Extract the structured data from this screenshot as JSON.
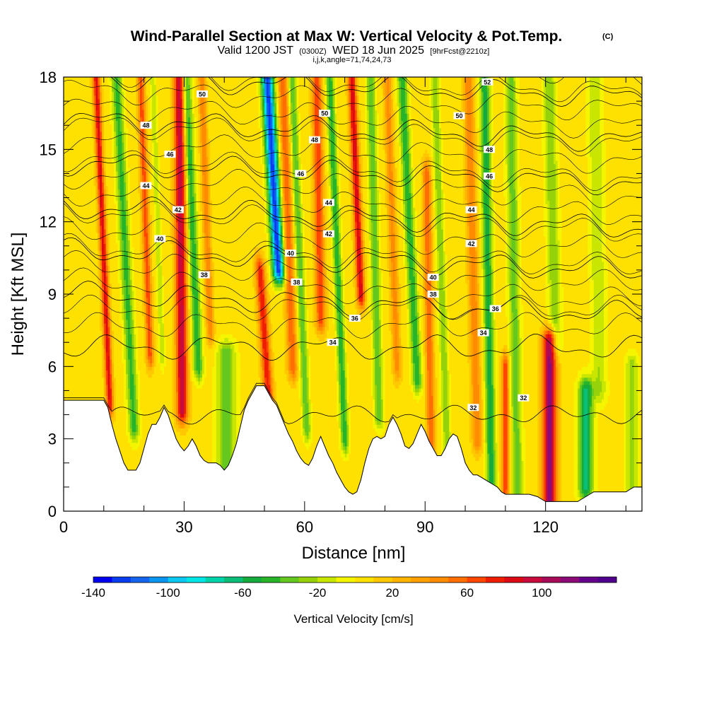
{
  "chart_data": {
    "type": "heatmap",
    "title": "Wind-Parallel Section at Max W: Vertical Velocity & Pot.Temp.",
    "title_mark": "(C)",
    "subtitle_valid": "Valid 1200 JST",
    "subtitle_utc": "(0300Z)",
    "subtitle_date": "WED 18 Jun 2025",
    "subtitle_fcst": "[9hrFcst@2210z]",
    "subtitle2": "i,j,k,angle=71,74,24,73",
    "xlabel": "Distance [nm]",
    "ylabel": "Height [Kft MSL]",
    "xlim": [
      0,
      144
    ],
    "ylim": [
      0,
      18
    ],
    "x_ticks": [
      "0",
      "30",
      "60",
      "90",
      "120"
    ],
    "x_tick_values": [
      0,
      30,
      60,
      90,
      120
    ],
    "y_ticks": [
      "0",
      "3",
      "6",
      "9",
      "12",
      "15",
      "18"
    ],
    "y_tick_values": [
      0,
      3,
      6,
      9,
      12,
      15,
      18
    ],
    "colorbar": {
      "label": "Vertical Velocity [cm/s]",
      "min": -140,
      "max": 140,
      "step": 10,
      "tick_labels": [
        "-140",
        "-100",
        "-60",
        "-20",
        "20",
        "60",
        "100"
      ],
      "tick_values": [
        -140,
        -100,
        -60,
        -20,
        20,
        60,
        100
      ],
      "colors": [
        "#0000f0",
        "#0a3cf0",
        "#1464f0",
        "#0a96f0",
        "#0ac8f0",
        "#00e6e6",
        "#00d2aa",
        "#0abe78",
        "#14aa3c",
        "#28b428",
        "#64c81e",
        "#96d20a",
        "#c8e600",
        "#f5f500",
        "#ffe100",
        "#ffc800",
        "#ffb400",
        "#ffa000",
        "#ff8c00",
        "#ff6e00",
        "#ff4600",
        "#f01e00",
        "#dc0a14",
        "#c80a3c",
        "#aa0a5a",
        "#8c0a78",
        "#64008c",
        "#50008c"
      ]
    },
    "terrain_kft": [
      [
        0,
        4.6
      ],
      [
        8,
        4.6
      ],
      [
        10,
        4.6
      ],
      [
        11,
        4.3
      ],
      [
        12,
        3.6
      ],
      [
        13,
        3.0
      ],
      [
        14,
        2.5
      ],
      [
        15,
        2.0
      ],
      [
        16,
        1.7
      ],
      [
        18,
        1.7
      ],
      [
        19,
        2.0
      ],
      [
        20,
        2.6
      ],
      [
        21,
        3.2
      ],
      [
        22,
        3.6
      ],
      [
        23,
        3.6
      ],
      [
        24,
        3.9
      ],
      [
        25,
        4.3
      ],
      [
        26,
        4.0
      ],
      [
        27,
        3.5
      ],
      [
        28,
        3.0
      ],
      [
        29,
        2.7
      ],
      [
        30,
        2.5
      ],
      [
        31,
        2.7
      ],
      [
        32,
        3.0
      ],
      [
        33,
        2.7
      ],
      [
        34,
        2.3
      ],
      [
        35,
        2.1
      ],
      [
        36,
        2.0
      ],
      [
        38,
        2.0
      ],
      [
        39,
        1.9
      ],
      [
        40,
        1.7
      ],
      [
        41,
        1.9
      ],
      [
        42,
        2.3
      ],
      [
        43,
        2.8
      ],
      [
        44,
        3.5
      ],
      [
        45,
        4.2
      ],
      [
        46,
        4.6
      ],
      [
        47,
        4.9
      ],
      [
        48,
        5.2
      ],
      [
        50,
        5.2
      ],
      [
        51,
        4.9
      ],
      [
        52,
        4.6
      ],
      [
        53,
        4.4
      ],
      [
        54,
        4.0
      ],
      [
        55,
        3.6
      ],
      [
        56,
        3.2
      ],
      [
        57,
        2.9
      ],
      [
        58,
        2.5
      ],
      [
        59,
        2.2
      ],
      [
        60,
        2.0
      ],
      [
        61,
        1.9
      ],
      [
        62,
        2.2
      ],
      [
        63,
        2.7
      ],
      [
        64,
        3.1
      ],
      [
        65,
        2.7
      ],
      [
        66,
        2.3
      ],
      [
        67,
        2.0
      ],
      [
        68,
        1.6
      ],
      [
        69,
        1.3
      ],
      [
        70,
        1.0
      ],
      [
        71,
        0.8
      ],
      [
        72,
        0.7
      ],
      [
        73,
        0.8
      ],
      [
        74,
        1.3
      ],
      [
        75,
        2.0
      ],
      [
        76,
        2.6
      ],
      [
        77,
        3.0
      ],
      [
        78,
        3.1
      ],
      [
        79,
        3.0
      ],
      [
        80,
        3.1
      ],
      [
        81,
        3.6
      ],
      [
        82,
        3.9
      ],
      [
        83,
        3.6
      ],
      [
        84,
        3.2
      ],
      [
        85,
        2.7
      ],
      [
        86,
        2.6
      ],
      [
        87,
        2.8
      ],
      [
        88,
        3.2
      ],
      [
        89,
        3.6
      ],
      [
        90,
        3.3
      ],
      [
        91,
        2.9
      ],
      [
        92,
        2.6
      ],
      [
        93,
        2.3
      ],
      [
        94,
        2.3
      ],
      [
        95,
        2.6
      ],
      [
        96,
        3.0
      ],
      [
        97,
        3.2
      ],
      [
        98,
        3.1
      ],
      [
        99,
        2.6
      ],
      [
        100,
        2.0
      ],
      [
        101,
        1.7
      ],
      [
        102,
        1.5
      ],
      [
        103,
        1.5
      ],
      [
        104,
        1.4
      ],
      [
        105,
        1.3
      ],
      [
        106,
        1.2
      ],
      [
        107,
        1.1
      ],
      [
        108,
        1.0
      ],
      [
        109,
        0.8
      ],
      [
        110,
        0.7
      ],
      [
        112,
        0.7
      ],
      [
        114,
        0.7
      ],
      [
        116,
        0.7
      ],
      [
        118,
        0.6
      ],
      [
        120,
        0.4
      ],
      [
        124,
        0.4
      ],
      [
        128,
        0.4
      ],
      [
        130,
        0.6
      ],
      [
        132,
        0.8
      ],
      [
        134,
        0.8
      ],
      [
        136,
        0.8
      ],
      [
        140,
        0.8
      ],
      [
        142,
        1.0
      ],
      [
        144,
        1.0
      ]
    ],
    "updraft_bands": [
      {
        "x": 11.5,
        "w": 0.9,
        "amp": 80,
        "y0": 4.5,
        "y1": 18,
        "tilt": -0.25
      },
      {
        "x": 17.5,
        "w": 1.3,
        "amp": -50,
        "y0": 3.5,
        "y1": 18,
        "tilt": -0.3
      },
      {
        "x": 21.5,
        "w": 0.9,
        "amp": 60,
        "y0": 6.5,
        "y1": 18,
        "tilt": -0.2
      },
      {
        "x": 24.5,
        "w": 0.7,
        "amp": -25,
        "y0": 6.5,
        "y1": 18,
        "tilt": -0.2
      },
      {
        "x": 29.5,
        "w": 1.4,
        "amp": 95,
        "y0": 4.2,
        "y1": 18,
        "tilt": -0.05
      },
      {
        "x": 33.5,
        "w": 1.2,
        "amp": -55,
        "y0": 6.0,
        "y1": 18,
        "tilt": -0.25
      },
      {
        "x": 36.5,
        "w": 0.9,
        "amp": 45,
        "y0": 7.5,
        "y1": 18,
        "tilt": -0.2
      },
      {
        "x": 40.5,
        "w": 2.2,
        "amp": -45,
        "y0": 1.9,
        "y1": 6.5,
        "tilt": 0.0
      },
      {
        "x": 51.0,
        "w": 1.2,
        "amp": 75,
        "y0": 4.8,
        "y1": 10,
        "tilt": -0.4
      },
      {
        "x": 53.5,
        "w": 1.5,
        "amp": -130,
        "y0": 10,
        "y1": 18,
        "tilt": -0.35
      },
      {
        "x": 57.0,
        "w": 1.2,
        "amp": 55,
        "y0": 6.0,
        "y1": 18,
        "tilt": -0.2
      },
      {
        "x": 60.5,
        "w": 1.0,
        "amp": -45,
        "y0": 3.5,
        "y1": 18,
        "tilt": -0.25
      },
      {
        "x": 64.0,
        "w": 1.2,
        "amp": 65,
        "y0": 8.0,
        "y1": 18,
        "tilt": -0.1
      },
      {
        "x": 70.0,
        "w": 1.0,
        "amp": -55,
        "y0": 3.0,
        "y1": 18,
        "tilt": -0.25
      },
      {
        "x": 74.0,
        "w": 1.0,
        "amp": 85,
        "y0": 9.0,
        "y1": 18,
        "tilt": -0.25
      },
      {
        "x": 78.5,
        "w": 1.1,
        "amp": -45,
        "y0": 4.0,
        "y1": 18,
        "tilt": -0.15
      },
      {
        "x": 83.0,
        "w": 1.0,
        "amp": 40,
        "y0": 6.0,
        "y1": 18,
        "tilt": -0.2
      },
      {
        "x": 88.0,
        "w": 1.2,
        "amp": -55,
        "y0": 5.5,
        "y1": 18,
        "tilt": -0.3
      },
      {
        "x": 91.5,
        "w": 1.0,
        "amp": 55,
        "y0": 2.8,
        "y1": 14,
        "tilt": -0.1
      },
      {
        "x": 95.5,
        "w": 1.0,
        "amp": -35,
        "y0": 2.5,
        "y1": 18,
        "tilt": -0.2
      },
      {
        "x": 103.0,
        "w": 1.2,
        "amp": 45,
        "y0": 3.0,
        "y1": 18,
        "tilt": -0.15
      },
      {
        "x": 106.5,
        "w": 1.2,
        "amp": -60,
        "y0": 1.3,
        "y1": 18,
        "tilt": -0.1
      },
      {
        "x": 110.0,
        "w": 0.9,
        "amp": 65,
        "y0": 1.0,
        "y1": 6,
        "tilt": 0.0
      },
      {
        "x": 113.0,
        "w": 1.4,
        "amp": -40,
        "y0": 0.8,
        "y1": 18,
        "tilt": -0.1
      },
      {
        "x": 121.0,
        "w": 1.7,
        "amp": 110,
        "y0": 0.4,
        "y1": 7,
        "tilt": 0.0
      },
      {
        "x": 122.5,
        "w": 1.5,
        "amp": -35,
        "y0": 7,
        "y1": 18,
        "tilt": -0.15
      },
      {
        "x": 130.0,
        "w": 1.8,
        "amp": -70,
        "y0": 1.0,
        "y1": 5,
        "tilt": 0.0
      },
      {
        "x": 133.5,
        "w": 1.8,
        "amp": -25,
        "y0": 5,
        "y1": 18,
        "tilt": -0.1
      },
      {
        "x": 141.5,
        "w": 1.6,
        "amp": -30,
        "y0": 1.0,
        "y1": 6,
        "tilt": 0.0
      }
    ],
    "theta_contours": [
      32,
      34,
      36,
      38,
      40,
      42,
      44,
      46,
      48,
      50,
      52
    ],
    "contour_labels": [
      {
        "text": "50",
        "x": 34.5,
        "y": 17.3
      },
      {
        "text": "48",
        "x": 20.5,
        "y": 16.0
      },
      {
        "text": "46",
        "x": 26.5,
        "y": 14.8
      },
      {
        "text": "44",
        "x": 20.5,
        "y": 13.5
      },
      {
        "text": "42",
        "x": 28.5,
        "y": 12.5
      },
      {
        "text": "40",
        "x": 24.0,
        "y": 11.3
      },
      {
        "text": "38",
        "x": 35.0,
        "y": 9.8
      },
      {
        "text": "52",
        "x": 105.5,
        "y": 17.8
      },
      {
        "text": "50",
        "x": 65.0,
        "y": 16.5
      },
      {
        "text": "48",
        "x": 62.5,
        "y": 15.4
      },
      {
        "text": "46",
        "x": 59.0,
        "y": 14.0
      },
      {
        "text": "44",
        "x": 66.0,
        "y": 12.8
      },
      {
        "text": "42",
        "x": 66.0,
        "y": 11.5
      },
      {
        "text": "40",
        "x": 56.5,
        "y": 10.7
      },
      {
        "text": "38",
        "x": 58.0,
        "y": 9.5
      },
      {
        "text": "36",
        "x": 72.5,
        "y": 8.0
      },
      {
        "text": "34",
        "x": 67.0,
        "y": 7.0
      },
      {
        "text": "50",
        "x": 98.5,
        "y": 16.4
      },
      {
        "text": "48",
        "x": 106.0,
        "y": 15.0
      },
      {
        "text": "46",
        "x": 106.0,
        "y": 13.9
      },
      {
        "text": "44",
        "x": 101.5,
        "y": 12.5
      },
      {
        "text": "42",
        "x": 101.5,
        "y": 11.1
      },
      {
        "text": "40",
        "x": 92.0,
        "y": 9.7
      },
      {
        "text": "38",
        "x": 92.0,
        "y": 9.0
      },
      {
        "text": "36",
        "x": 107.5,
        "y": 8.4
      },
      {
        "text": "34",
        "x": 104.5,
        "y": 7.4
      },
      {
        "text": "32",
        "x": 102.0,
        "y": 4.3
      },
      {
        "text": "32",
        "x": 114.5,
        "y": 4.7
      }
    ]
  }
}
